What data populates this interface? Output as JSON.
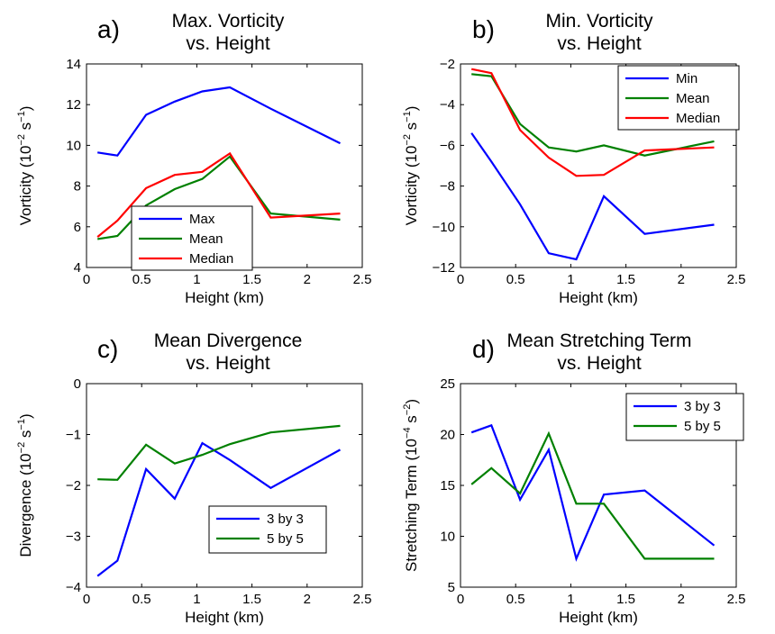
{
  "chart_data": [
    {
      "type": "line",
      "panel": "a)",
      "title": [
        "Max. Vorticity",
        "vs. Height"
      ],
      "xlabel": "Height (km)",
      "ylabel": {
        "base": "Vorticity (10",
        "exp1": "−2",
        "mid": " s",
        "exp2": "−1",
        "end": ")"
      },
      "xlim": [
        0,
        2.5
      ],
      "ylim": [
        4,
        14
      ],
      "xticks": [
        0,
        0.5,
        1,
        1.5,
        2,
        2.5
      ],
      "xtick_labels": [
        "0",
        "0.5",
        "1",
        "1.5",
        "2",
        "2.5"
      ],
      "yticks": [
        4,
        6,
        8,
        10,
        12,
        14
      ],
      "ytick_labels": [
        "4",
        "6",
        "8",
        "10",
        "12",
        "14"
      ],
      "legend_position": "lower-center",
      "x": [
        0.1,
        0.28,
        0.54,
        0.8,
        1.05,
        1.3,
        1.67,
        2.3
      ],
      "series": [
        {
          "name": "Max",
          "color": "#0000ff",
          "values": [
            9.65,
            9.5,
            11.5,
            12.15,
            12.65,
            12.85,
            11.8,
            10.1
          ]
        },
        {
          "name": "Mean",
          "color": "#008000",
          "values": [
            5.4,
            5.55,
            7.05,
            7.85,
            8.35,
            9.45,
            6.65,
            6.35
          ]
        },
        {
          "name": "Median",
          "color": "#ff0000",
          "values": [
            5.5,
            6.3,
            7.9,
            8.55,
            8.7,
            9.6,
            6.45,
            6.65
          ]
        }
      ]
    },
    {
      "type": "line",
      "panel": "b)",
      "title": [
        "Min. Vorticity",
        "vs. Height"
      ],
      "xlabel": "Height (km)",
      "ylabel": {
        "base": "Vorticity (10",
        "exp1": "−2",
        "mid": " s",
        "exp2": "−1",
        "end": ")"
      },
      "xlim": [
        0,
        2.5
      ],
      "ylim": [
        -12,
        -2
      ],
      "xticks": [
        0,
        0.5,
        1,
        1.5,
        2,
        2.5
      ],
      "xtick_labels": [
        "0",
        "0.5",
        "1",
        "1.5",
        "2",
        "2.5"
      ],
      "yticks": [
        -12,
        -10,
        -8,
        -6,
        -4,
        -2
      ],
      "ytick_labels": [
        "−12",
        "−10",
        "−8",
        "−6",
        "−4",
        "−2"
      ],
      "legend_position": "top-right",
      "x": [
        0.1,
        0.28,
        0.54,
        0.8,
        1.05,
        1.3,
        1.67,
        2.3
      ],
      "series": [
        {
          "name": "Min",
          "color": "#0000ff",
          "values": [
            -5.4,
            -6.8,
            -8.9,
            -11.3,
            -11.6,
            -8.5,
            -10.35,
            -9.9
          ]
        },
        {
          "name": "Mean",
          "color": "#008000",
          "values": [
            -2.5,
            -2.6,
            -4.95,
            -6.1,
            -6.3,
            -6.0,
            -6.5,
            -5.8
          ]
        },
        {
          "name": "Median",
          "color": "#ff0000",
          "values": [
            -2.25,
            -2.45,
            -5.25,
            -6.6,
            -7.5,
            -7.45,
            -6.25,
            -6.1
          ]
        }
      ]
    },
    {
      "type": "line",
      "panel": "c)",
      "title": [
        "Mean Divergence",
        "vs. Height"
      ],
      "xlabel": "Height (km)",
      "ylabel": {
        "base": "Divergence (10",
        "exp1": "−2",
        "mid": " s",
        "exp2": "−1",
        "end": ")"
      },
      "xlim": [
        0,
        2.5
      ],
      "ylim": [
        -4,
        0
      ],
      "xticks": [
        0,
        0.5,
        1,
        1.5,
        2,
        2.5
      ],
      "xtick_labels": [
        "0",
        "0.5",
        "1",
        "1.5",
        "2",
        "2.5"
      ],
      "yticks": [
        -4,
        -3,
        -2,
        -1,
        0
      ],
      "ytick_labels": [
        "−4",
        "−3",
        "−2",
        "−1",
        "0"
      ],
      "legend_position": "lower-right",
      "x": [
        0.1,
        0.28,
        0.54,
        0.8,
        1.05,
        1.3,
        1.67,
        2.3
      ],
      "series": [
        {
          "name": "3 by 3",
          "color": "#0000ff",
          "values": [
            -3.78,
            -3.48,
            -1.68,
            -2.26,
            -1.17,
            -1.5,
            -2.05,
            -1.3
          ]
        },
        {
          "name": "5 by 5",
          "color": "#008000",
          "values": [
            -1.88,
            -1.89,
            -1.2,
            -1.57,
            -1.4,
            -1.19,
            -0.96,
            -0.83
          ]
        }
      ]
    },
    {
      "type": "line",
      "panel": "d)",
      "title": [
        "Mean Stretching Term",
        "vs. Height"
      ],
      "xlabel": "Height (km)",
      "ylabel": {
        "base": "Stretching Term (10",
        "exp1": "−4",
        "mid": " s",
        "exp2": "−2",
        "end": ")"
      },
      "xlim": [
        0,
        2.5
      ],
      "ylim": [
        5,
        25
      ],
      "xticks": [
        0,
        0.5,
        1,
        1.5,
        2,
        2.5
      ],
      "xtick_labels": [
        "0",
        "0.5",
        "1",
        "1.5",
        "2",
        "2.5"
      ],
      "yticks": [
        5,
        10,
        15,
        20,
        25
      ],
      "ytick_labels": [
        "5",
        "10",
        "15",
        "20",
        "25"
      ],
      "legend_position": "top-center",
      "x": [
        0.1,
        0.28,
        0.54,
        0.8,
        1.05,
        1.3,
        1.67,
        2.3
      ],
      "series": [
        {
          "name": "3 by 3",
          "color": "#0000ff",
          "values": [
            20.2,
            20.9,
            13.6,
            18.5,
            7.8,
            14.1,
            14.5,
            9.1
          ]
        },
        {
          "name": "5 by 5",
          "color": "#008000",
          "values": [
            15.1,
            16.7,
            14.2,
            20.1,
            13.2,
            13.2,
            7.8,
            7.8
          ]
        }
      ]
    }
  ]
}
